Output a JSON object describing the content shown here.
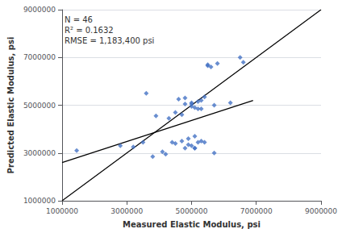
{
  "chart_data": {
    "type": "scatter",
    "xlabel": "Measured Elastic Modulus, psi",
    "ylabel": "Predicted Elastic Modulus, psi",
    "annotations": [
      "N = 46",
      "R² = 0.1632",
      "RMSE = 1,183,400 psi"
    ],
    "xlim": [
      1000000,
      9000000
    ],
    "ylim": [
      1000000,
      9000000
    ],
    "xticks": [
      1000000,
      3000000,
      5000000,
      7000000,
      9000000
    ],
    "yticks": [
      1000000,
      3000000,
      5000000,
      7000000,
      9000000
    ],
    "grid": "y",
    "series": [
      {
        "type": "scatter",
        "color": "#4472c4",
        "marker": "diamond",
        "x": [
          1450000,
          2800000,
          3200000,
          3500000,
          3600000,
          3800000,
          3900000,
          4100000,
          4200000,
          4300000,
          4400000,
          4500000,
          4500000,
          4600000,
          4700000,
          4700000,
          4800000,
          4800000,
          4800000,
          4900000,
          4900000,
          5000000,
          5000000,
          5000000,
          5000000,
          5100000,
          5100000,
          5100000,
          5100000,
          5200000,
          5200000,
          5200000,
          5300000,
          5300000,
          5300000,
          5400000,
          5400000,
          5500000,
          5500000,
          5600000,
          5700000,
          5700000,
          5800000,
          6200000,
          6500000,
          6600000
        ],
        "values": [
          3100000,
          3300000,
          3250000,
          3450000,
          5500000,
          2850000,
          4550000,
          3050000,
          2950000,
          4450000,
          3450000,
          3400000,
          4700000,
          5250000,
          3500000,
          4600000,
          5050000,
          5300000,
          3200000,
          3600000,
          3350000,
          3300000,
          5050000,
          4950000,
          5100000,
          3200000,
          3200000,
          4900000,
          3700000,
          5150000,
          3450000,
          4850000,
          4850000,
          5200000,
          3500000,
          5350000,
          3450000,
          6650000,
          6700000,
          6600000,
          5000000,
          3000000,
          6750000,
          5100000,
          7000000,
          6800000
        ]
      },
      {
        "type": "line",
        "color": "black",
        "line_style": "solid",
        "x": [
          1000000,
          9000000
        ],
        "values": [
          1000000,
          9000000
        ]
      },
      {
        "type": "line",
        "color": "black",
        "line_style": "solid",
        "x": [
          1000000,
          6900000
        ],
        "values": [
          2600000,
          5200000
        ]
      }
    ]
  }
}
